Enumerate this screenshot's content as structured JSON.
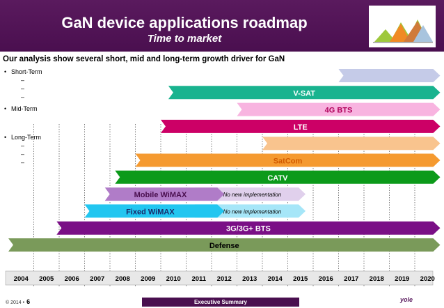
{
  "header": {
    "title": "GaN device applications roadmap",
    "subtitle": "Time to market"
  },
  "intro": "Our analysis show several short, mid and long-term growth driver for GaN",
  "bullets": [
    {
      "label": "Short-Term",
      "dashes": [
        "–",
        "–",
        "–"
      ]
    },
    {
      "label": "Mid-Term",
      "dashes": []
    },
    {
      "label": "Long-Term",
      "dashes": [
        "–",
        "–",
        "–"
      ]
    }
  ],
  "chart_data": {
    "type": "gantt",
    "years": [
      "2004",
      "2005",
      "2006",
      "2007",
      "2008",
      "2009",
      "2010",
      "2011",
      "2012",
      "2013",
      "2014",
      "2015",
      "2016",
      "2017",
      "2018",
      "2019",
      "2020"
    ],
    "bars": [
      {
        "label": "",
        "start": 2017,
        "end": 2020,
        "color": "#c5cbe8",
        "label_color": "#000000"
      },
      {
        "label": "V-SAT",
        "start": 2010.3,
        "end": 2020,
        "color": "#19b38f",
        "label_color": "#ffffff"
      },
      {
        "label": "4G BTS",
        "start": 2013,
        "end": 2020,
        "color": "#f8b4e0",
        "label_color": "#b0005a"
      },
      {
        "label": "LTE",
        "start": 2010,
        "end": 2020,
        "color": "#cc0066",
        "label_color": "#ffffff"
      },
      {
        "label": "",
        "start": 2014,
        "end": 2020,
        "color": "#f9c48e",
        "label_color": "#000000"
      },
      {
        "label": "SatCom",
        "start": 2009,
        "end": 2020,
        "color": "#f59a30",
        "label_color": "#d25a00"
      },
      {
        "label": "CATV",
        "start": 2008.2,
        "end": 2020,
        "color": "#0c9a1a",
        "label_color": "#ffffff"
      },
      {
        "label": "Mobile WiMAX",
        "start": 2007.8,
        "end": 2011.5,
        "color": "#b07cc8",
        "label_color": "#4a0f4f",
        "ext_label": "No new implementation",
        "ext_end": 2015.5,
        "ext_color": "#e0d0ec"
      },
      {
        "label": "Fixed WiMAX",
        "start": 2007,
        "end": 2011.5,
        "color": "#22c6f0",
        "label_color": "#1a2a6a",
        "ext_label": "No new implementation",
        "ext_end": 2015.5,
        "ext_color": "#a6e6f8"
      },
      {
        "label": "3G/3G+ BTS",
        "start": 2005.9,
        "end": 2020,
        "color": "#7a0f86",
        "label_color": "#ffffff"
      },
      {
        "label": "Defense",
        "start": 2004,
        "end": 2020,
        "color": "#7a9a5a",
        "label_color": "#000000"
      }
    ]
  },
  "footer": {
    "copyright": "© 2014 •",
    "page": "6",
    "tab": "Executive Summary",
    "logo": "yole"
  }
}
